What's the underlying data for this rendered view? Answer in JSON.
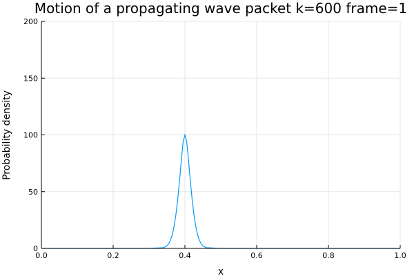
{
  "chart_data": {
    "type": "line",
    "title": "Motion of a propagating wave packet k=600 frame=1",
    "xlabel": "x",
    "ylabel": "Probability density",
    "xlim": [
      0.0,
      1.0
    ],
    "ylim": [
      0,
      200
    ],
    "x_ticks": [
      0.0,
      0.2,
      0.4,
      0.6,
      0.8,
      1.0
    ],
    "x_tick_labels": [
      "0.0",
      "0.2",
      "0.4",
      "0.6",
      "0.8",
      "1.0"
    ],
    "y_ticks": [
      0,
      50,
      100,
      150,
      200
    ],
    "y_tick_labels": [
      "0",
      "50",
      "100",
      "150",
      "200"
    ],
    "grid": true,
    "legend": "none",
    "series": [
      {
        "color": "#009af9",
        "x": [
          0.0,
          0.3,
          0.34,
          0.35,
          0.355,
          0.36,
          0.365,
          0.37,
          0.375,
          0.38,
          0.385,
          0.39,
          0.395,
          0.4,
          0.405,
          0.41,
          0.415,
          0.42,
          0.425,
          0.43,
          0.435,
          0.44,
          0.445,
          0.45,
          0.46,
          0.5,
          1.0
        ],
        "y": [
          0,
          0,
          0.6,
          2.3,
          4.2,
          7.4,
          12.4,
          19.8,
          30.1,
          43.6,
          59.8,
          77.6,
          94.0,
          100.0,
          94.0,
          77.6,
          59.8,
          43.6,
          30.1,
          19.8,
          12.4,
          7.4,
          4.2,
          2.3,
          0.6,
          0,
          0
        ]
      }
    ]
  }
}
